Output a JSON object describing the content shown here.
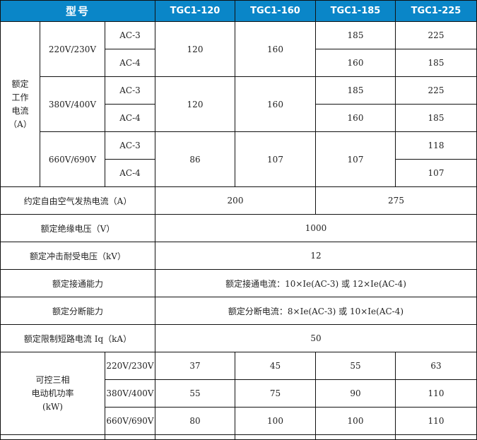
{
  "header": {
    "title": "型号",
    "models": [
      "TGC1-120",
      "TGC1-160",
      "TGC1-185",
      "TGC1-225"
    ]
  },
  "rated_current": {
    "label_lines": [
      "额定",
      "工作",
      "电流",
      "（A）"
    ],
    "groups": [
      {
        "voltage": "220V/230V",
        "ac3": "AC-3",
        "ac4": "AC-4",
        "m120": "120",
        "m160": "160",
        "m185": [
          "185",
          "160"
        ],
        "m225": [
          "225",
          "185"
        ]
      },
      {
        "voltage": "380V/400V",
        "ac3": "AC-3",
        "ac4": "AC-4",
        "m120": "120",
        "m160": "160",
        "m185": [
          "185",
          "160"
        ],
        "m225": [
          "225",
          "185"
        ]
      },
      {
        "voltage": "660V/690V",
        "ac3": "AC-3",
        "ac4": "AC-4",
        "m120": "86",
        "m160": "107",
        "m185": "107",
        "m225": [
          "118",
          "107"
        ]
      }
    ]
  },
  "thermal": {
    "label": "约定自由空气发热电流（A）",
    "v1": "200",
    "v2": "275"
  },
  "rows": [
    {
      "label": "额定绝缘电压（V）",
      "value": "1000"
    },
    {
      "label": "额定冲击耐受电压（kV）",
      "value": "12"
    },
    {
      "label": "额定接通能力",
      "value": "额定接通电流：10×Ie(AC-3) 或 12×Ie(AC-4)"
    },
    {
      "label": "额定分断能力",
      "value": "额定分断电流：8×Ie(AC-3) 或 10×Ie(AC-4)"
    },
    {
      "label": "额定限制短路电流 Iq（kA）",
      "value": "50"
    }
  ],
  "motor_power": {
    "label_lines": [
      "可控三相",
      "电动机功率",
      "(kW)"
    ],
    "rows": [
      {
        "voltage": "220V/230V",
        "values": [
          "37",
          "45",
          "55",
          "63"
        ]
      },
      {
        "voltage": "380V/400V",
        "values": [
          "55",
          "75",
          "90",
          "110"
        ]
      },
      {
        "voltage": "660V/690V",
        "values": [
          "80",
          "100",
          "100",
          "110"
        ]
      }
    ]
  }
}
